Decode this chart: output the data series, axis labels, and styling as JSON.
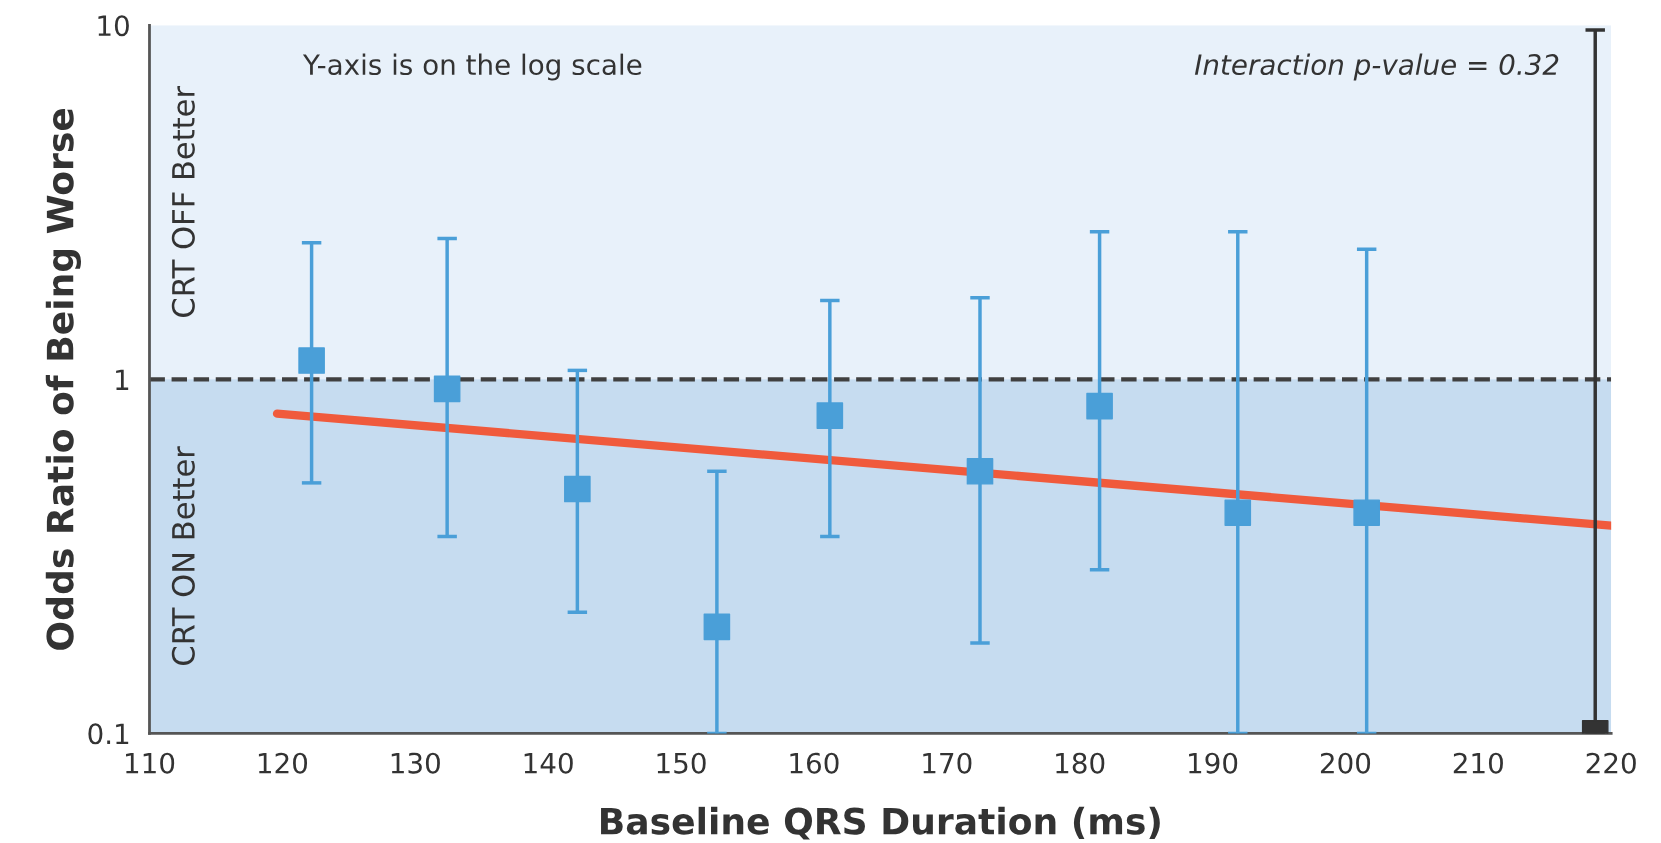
{
  "chart_data": {
    "type": "scatter",
    "xlabel": "Baseline QRS Duration (ms)",
    "ylabel": "Odds Ratio of Being Worse",
    "log": "y",
    "xlim": [
      110,
      220
    ],
    "xticks": [
      110,
      120,
      130,
      140,
      150,
      160,
      170,
      180,
      190,
      200,
      210,
      220
    ],
    "ylim": [
      0.1,
      10
    ],
    "yticks": [
      0.1,
      1,
      10
    ],
    "grid": false,
    "marker": "square",
    "series": [
      {
        "color": "#4a9fd8",
        "x": [
          122.2,
          132.4,
          142.2,
          152.7,
          161.2,
          172.5,
          181.5,
          191.9,
          201.6
        ],
        "values": [
          1.13,
          0.94,
          0.49,
          0.2,
          0.79,
          0.55,
          0.84,
          0.42,
          0.42
        ],
        "errors": [
          [
            0.51,
            2.43
          ],
          [
            0.36,
            2.5
          ],
          [
            0.22,
            1.06
          ],
          [
            0.1,
            0.55
          ],
          [
            0.36,
            1.67
          ],
          [
            0.18,
            1.7
          ],
          [
            0.29,
            2.61
          ],
          [
            0.1,
            2.61
          ],
          [
            0.1,
            2.33
          ]
        ]
      },
      {
        "type": "line",
        "color": "#f05a3c",
        "x": [
          119.6,
          220
        ],
        "values": [
          0.8,
          0.386
        ],
        "marker": "none"
      },
      {
        "color": "#333333",
        "x": [
          218.8
        ],
        "values": [
          0.1
        ],
        "errors": [
          [
            0.1,
            9.7
          ]
        ]
      }
    ],
    "ref_lines": [
      {
        "axis": "y",
        "value": 1,
        "color": "#404040",
        "line_style": "dashed"
      }
    ],
    "bands": [
      {
        "axis": "y",
        "from": 1,
        "to": 10,
        "label": "CRT OFF Better",
        "color": "#e8f1fa"
      },
      {
        "axis": "y",
        "from": 0.1,
        "to": 1,
        "label": "CRT ON Better",
        "color": "#c6dcf0"
      }
    ],
    "annotations": [
      "Y-axis is on the log scale",
      "Interaction p-value = 0.32"
    ]
  }
}
